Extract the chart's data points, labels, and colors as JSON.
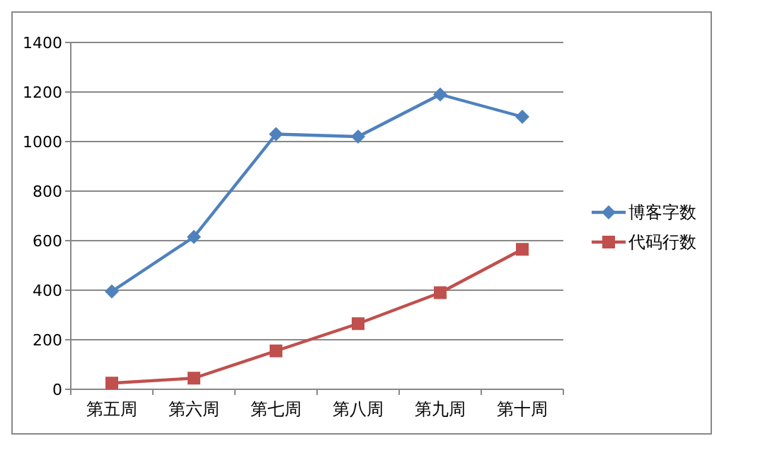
{
  "chart_data": {
    "type": "line",
    "categories": [
      "第五周",
      "第六周",
      "第七周",
      "第八周",
      "第九周",
      "第十周"
    ],
    "series": [
      {
        "name": "博客字数",
        "color": "#4f81bd",
        "marker": "diamond",
        "values": [
          395,
          615,
          1030,
          1020,
          1190,
          1100
        ]
      },
      {
        "name": "代码行数",
        "color": "#c0504d",
        "marker": "square",
        "values": [
          25,
          45,
          155,
          265,
          390,
          565
        ]
      }
    ],
    "ylim": [
      0,
      1400
    ],
    "yticks": [
      0,
      200,
      400,
      600,
      800,
      1000,
      1200,
      1400
    ],
    "grid": "y",
    "legend": "right"
  }
}
